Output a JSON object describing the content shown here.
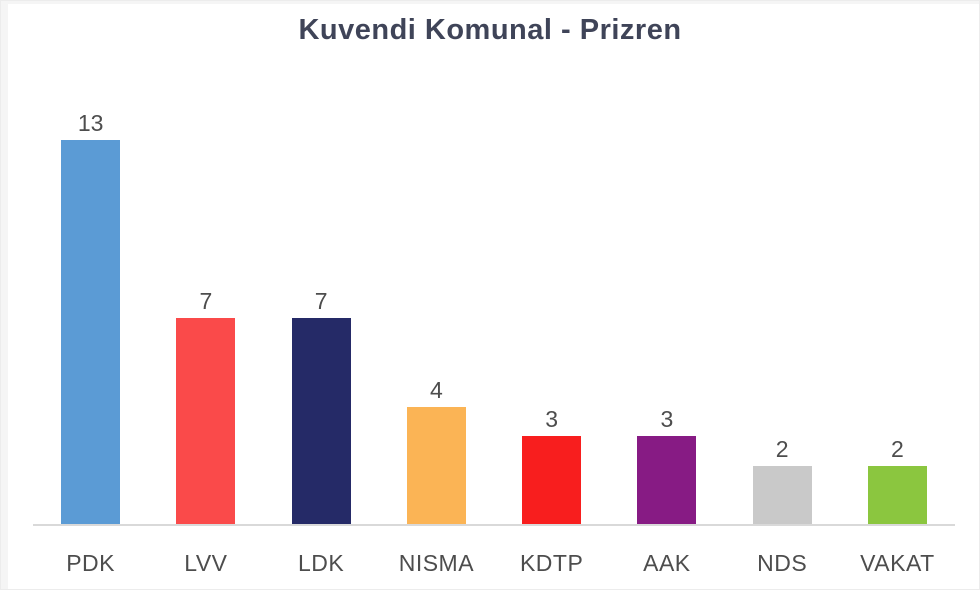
{
  "chart_data": {
    "type": "bar",
    "title": "Kuvendi Komunal - Prizren",
    "categories": [
      "PDK",
      "LVV",
      "LDK",
      "NISMA",
      "KDTP",
      "AAK",
      "NDS",
      "VAKAT"
    ],
    "values": [
      13,
      7,
      7,
      4,
      3,
      3,
      2,
      2
    ],
    "bar_colors": [
      "#5B9BD5",
      "#FA4A4A",
      "#252A67",
      "#FBB455",
      "#F81E1E",
      "#871B84",
      "#C9C9C9",
      "#8BC63F"
    ],
    "value_labels_shown": true,
    "xlabel": "",
    "ylabel": "",
    "ylim": [
      0,
      14
    ],
    "grid": false,
    "legend": "none",
    "axis_line_color": "#D9D9D9",
    "label_color": "#4D4D4D",
    "title_color": "#3F4458"
  }
}
